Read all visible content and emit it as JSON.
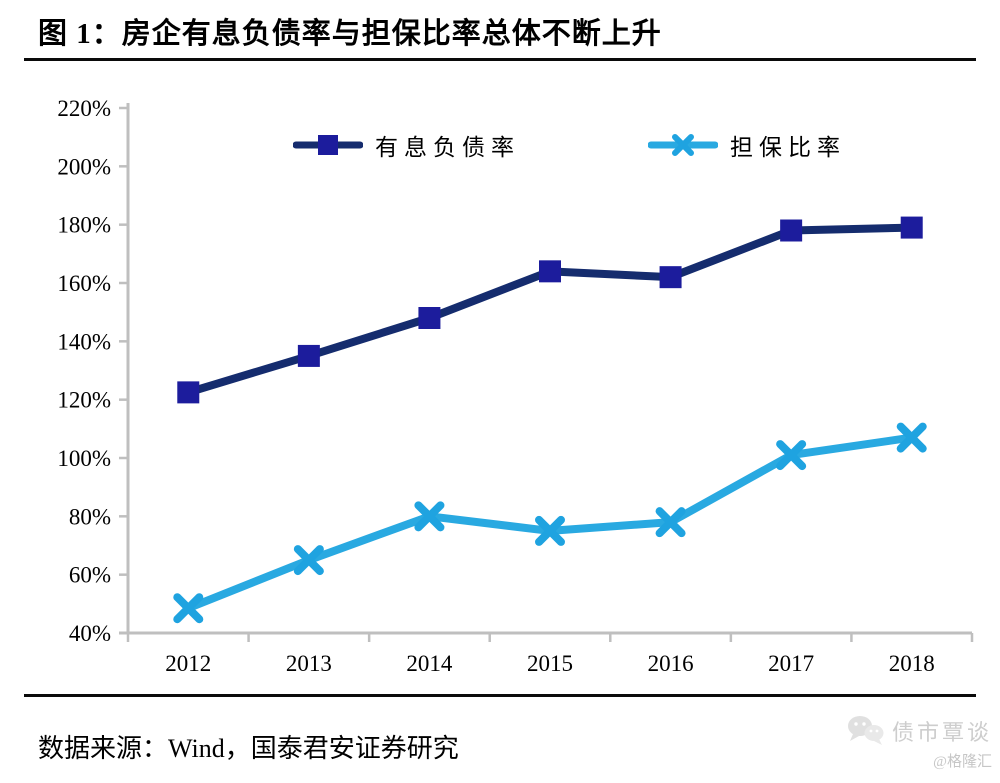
{
  "title": "图 1：房企有息负债率与担保比率总体不断上升",
  "source": "数据来源：Wind，国泰君安证券研究",
  "watermark": {
    "name": "债市覃谈",
    "handle": "@格隆汇",
    "icon": "wechat-chat-bubbles",
    "color": "#cdcdcd"
  },
  "chart_data": {
    "type": "line",
    "title": "房企有息负债率与担保比率总体不断上升",
    "categories": [
      "2012",
      "2013",
      "2014",
      "2015",
      "2016",
      "2017",
      "2018"
    ],
    "series": [
      {
        "name": "有息负债率",
        "values": [
          122.5,
          135,
          148,
          164,
          162,
          178,
          179
        ],
        "color": "#152c6e",
        "marker": "square",
        "marker_color": "#1c1c9c"
      },
      {
        "name": "担保比率",
        "values": [
          48.5,
          65,
          80,
          75,
          78,
          101,
          107
        ],
        "color": "#29a9e1",
        "marker": "x",
        "marker_color": "#1fa3e0"
      }
    ],
    "xlabel": "",
    "ylabel": "",
    "ylim": [
      40,
      220
    ],
    "y_tick_step": 20,
    "y_tick_labels": [
      "220%",
      "200%",
      "180%",
      "160%",
      "140%",
      "120%",
      "100%",
      "80%",
      "60%",
      "40%"
    ],
    "unit": "%",
    "grid": false,
    "legend_position": "top-center",
    "axis_color": "#bfbfbf"
  }
}
